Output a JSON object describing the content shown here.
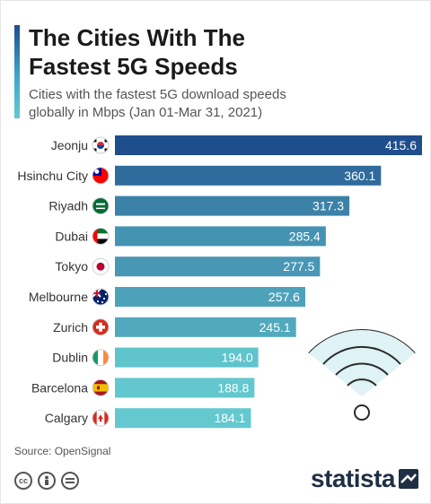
{
  "title_lines": [
    "The Cities With The",
    "Fastest 5G Speeds"
  ],
  "subtitle_lines": [
    "Cities with the fastest 5G download speeds",
    "globally in Mbps (Jan 01-Mar 31, 2021)"
  ],
  "source": "Source: OpenSignal",
  "brand": "statista",
  "license_icons": [
    "cc-icon",
    "person-icon",
    "equals-icon"
  ],
  "colors": {
    "bar_dark": "#1f4e8c",
    "bar_light": "#63c9cf",
    "label_text": "#ffffff"
  },
  "chart_data": {
    "type": "bar",
    "orientation": "horizontal",
    "categories": [
      "Jeonju",
      "Hsinchu City",
      "Riyadh",
      "Dubai",
      "Tokyo",
      "Melbourne",
      "Zurich",
      "Dublin",
      "Barcelona",
      "Calgary"
    ],
    "values": [
      415.6,
      360.1,
      317.3,
      285.4,
      277.5,
      257.6,
      245.1,
      194.0,
      188.8,
      184.1
    ],
    "value_labels": [
      "415.6",
      "360.1",
      "317.3",
      "285.4",
      "277.5",
      "257.6",
      "245.1",
      "194.0",
      "188.8",
      "184.1"
    ],
    "flags": [
      "south-korea-flag",
      "taiwan-flag",
      "saudi-arabia-flag",
      "uae-flag",
      "japan-flag",
      "australia-flag",
      "switzerland-flag",
      "ireland-flag",
      "spain-flag",
      "canada-flag"
    ],
    "xlim": [
      0,
      415.6
    ],
    "grid": false,
    "legend": "none"
  }
}
